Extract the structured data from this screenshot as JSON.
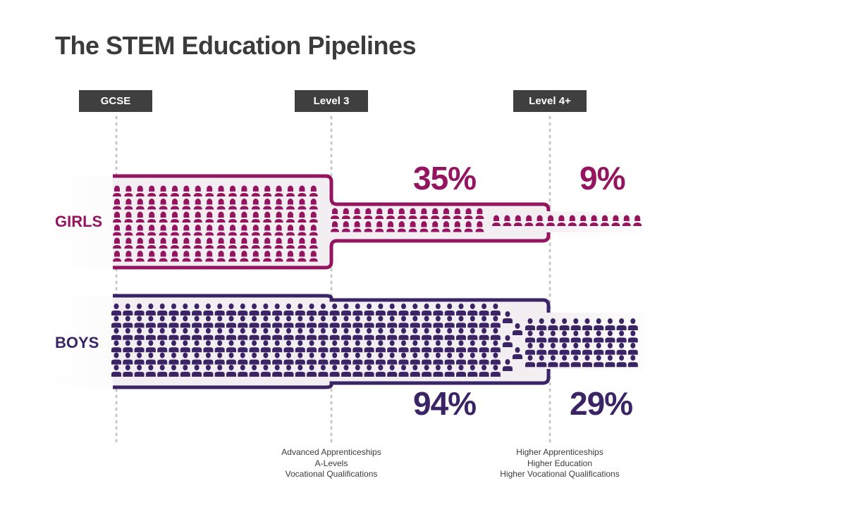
{
  "title": "The STEM Education Pipelines",
  "stages": [
    {
      "label": "GCSE"
    },
    {
      "label": "Level 3",
      "descriptions": [
        "Advanced Apprenticeships",
        "A-Levels",
        "Vocational Qualifications"
      ]
    },
    {
      "label": "Level 4+",
      "descriptions": [
        "Higher Apprenticeships",
        "Higher Education",
        "Higher Vocational Qualifications"
      ]
    }
  ],
  "rows": {
    "girls": {
      "label": "GIRLS",
      "color": "#95145f",
      "level3_percent": "35%",
      "level4_percent": "9%",
      "level3_share": 0.35,
      "level4_share": 0.09
    },
    "boys": {
      "label": "BOYS",
      "color": "#3b2466",
      "level3_percent": "94%",
      "level4_percent": "29%",
      "level3_share": 0.94,
      "level4_share": 0.29
    }
  },
  "icons": {
    "girls": "girl-icon",
    "boys": "boy-icon"
  },
  "colors": {
    "title": "#3b3b3b",
    "stage_tag_bg": "#3f3f3f",
    "pipe_fill": "#f3eef2",
    "guide_line": "#c8c8c8"
  }
}
